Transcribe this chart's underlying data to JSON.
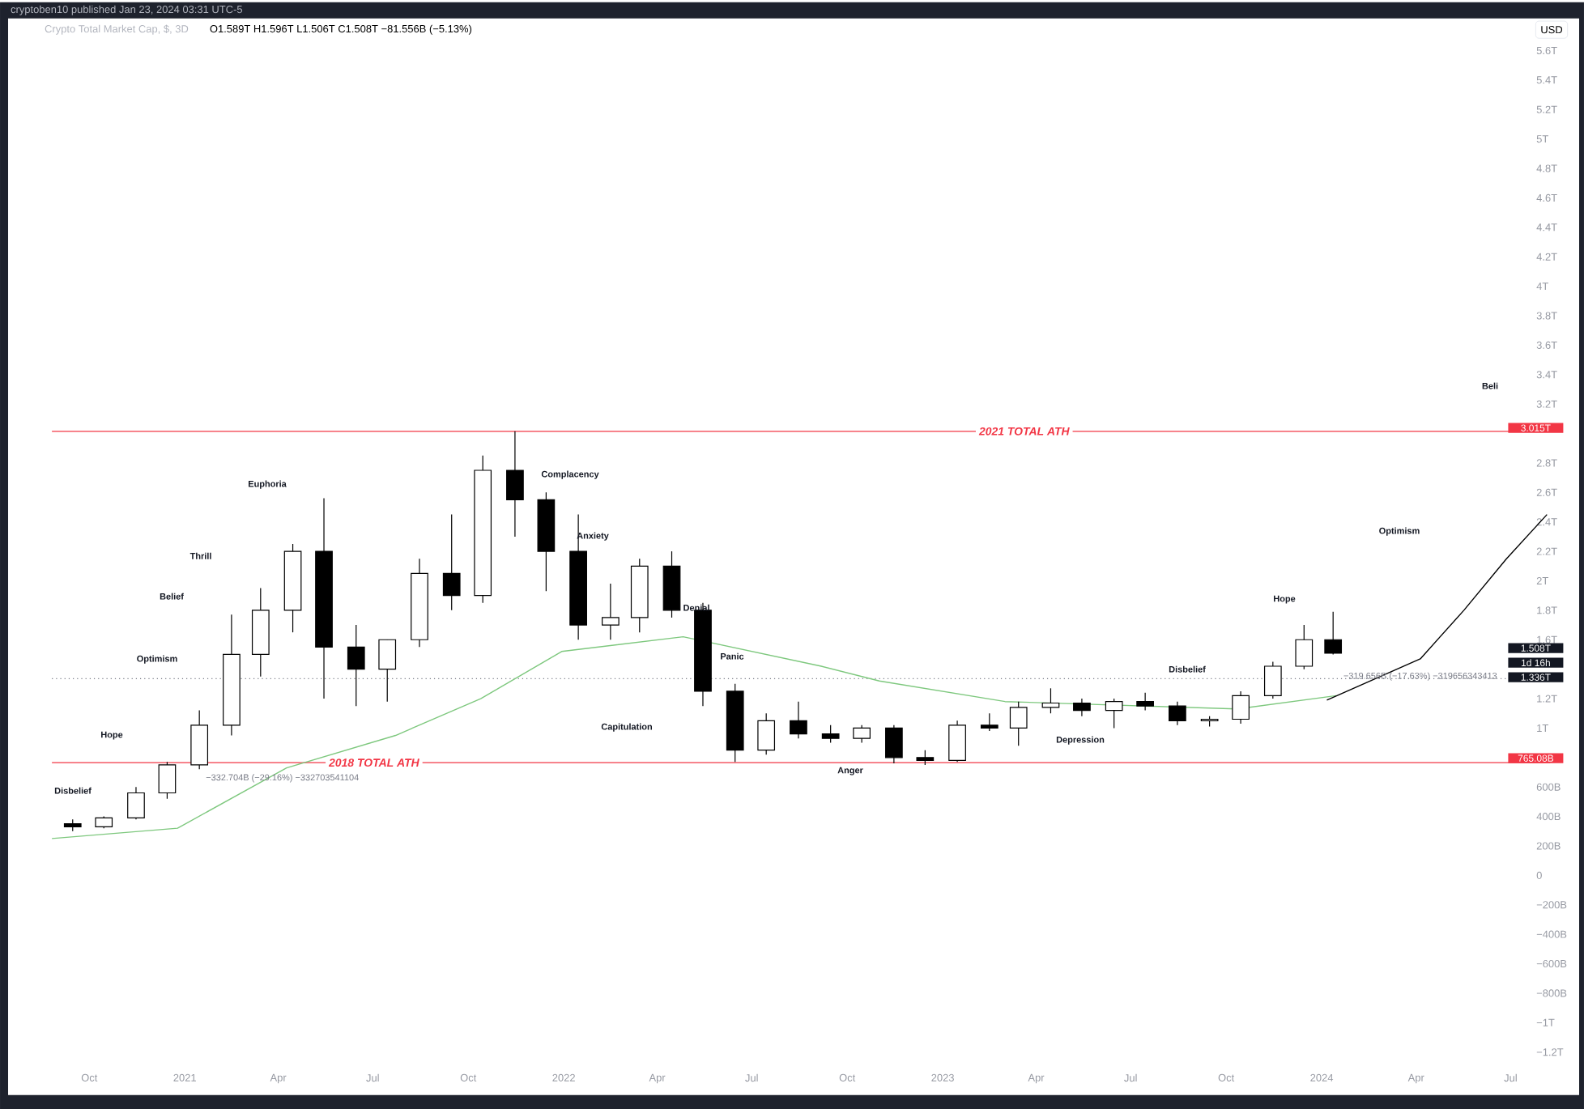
{
  "chart_data": {
    "type": "candlestick",
    "title": "Crypto Total Market Cap, $, 3D",
    "subtitle": "O1.589T H1.596T L1.506T C1.508T −81.556B (−5.13%)",
    "ylabel": "USD",
    "x": [
      "2020-09-15",
      "2020-10-15",
      "2020-11-15",
      "2020-12-15",
      "2021-01-15",
      "2021-02-15",
      "2021-03-15",
      "2021-04-15",
      "2021-05-15",
      "2021-06-15",
      "2021-07-15",
      "2021-08-15",
      "2021-09-15",
      "2021-10-15",
      "2021-11-15",
      "2021-12-15",
      "2022-01-15",
      "2022-02-15",
      "2022-03-15",
      "2022-04-15",
      "2022-05-15",
      "2022-06-15",
      "2022-07-15",
      "2022-08-15",
      "2022-09-15",
      "2022-10-15",
      "2022-11-15",
      "2022-12-15",
      "2023-01-15",
      "2023-02-15",
      "2023-03-15",
      "2023-04-15",
      "2023-05-15",
      "2023-06-15",
      "2023-07-15",
      "2023-08-15",
      "2023-09-15",
      "2023-10-15",
      "2023-11-15",
      "2023-12-15",
      "2024-01-12"
    ],
    "ohlc": [
      [
        350000000000.0,
        380000000000.0,
        300000000000.0,
        330000000000.0
      ],
      [
        330000000000.0,
        400000000000.0,
        320000000000.0,
        390000000000.0
      ],
      [
        390000000000.0,
        600000000000.0,
        380000000000.0,
        560000000000.0
      ],
      [
        560000000000.0,
        770000000000.0,
        520000000000.0,
        750000000000.0
      ],
      [
        750000000000.0,
        1120000000000.0,
        720000000000.0,
        1020000000000.0
      ],
      [
        1020000000000.0,
        1770000000000.0,
        950000000000.0,
        1500000000000.0
      ],
      [
        1500000000000.0,
        1950000000000.0,
        1350000000000.0,
        1800000000000.0
      ],
      [
        1800000000000.0,
        2250000000000.0,
        1650000000000.0,
        2200000000000.0
      ],
      [
        2200000000000.0,
        2560000000000.0,
        1200000000000.0,
        1550000000000.0
      ],
      [
        1550000000000.0,
        1700000000000.0,
        1150000000000.0,
        1400000000000.0
      ],
      [
        1400000000000.0,
        1600000000000.0,
        1180000000000.0,
        1600000000000.0
      ],
      [
        1600000000000.0,
        2150000000000.0,
        1550000000000.0,
        2050000000000.0
      ],
      [
        2050000000000.0,
        2450000000000.0,
        1800000000000.0,
        1900000000000.0
      ],
      [
        1900000000000.0,
        2850000000000.0,
        1850000000000.0,
        2750000000000.0
      ],
      [
        2750000000000.0,
        3015000000000.0,
        2300000000000.0,
        2550000000000.0
      ],
      [
        2550000000000.0,
        2600000000000.0,
        1930000000000.0,
        2200000000000.0
      ],
      [
        2200000000000.0,
        2450000000000.0,
        1600000000000.0,
        1700000000000.0
      ],
      [
        1700000000000.0,
        1980000000000.0,
        1600000000000.0,
        1750000000000.0
      ],
      [
        1750000000000.0,
        2150000000000.0,
        1650000000000.0,
        2100000000000.0
      ],
      [
        2100000000000.0,
        2200000000000.0,
        1750000000000.0,
        1800000000000.0
      ],
      [
        1800000000000.0,
        1850000000000.0,
        1150000000000.0,
        1250000000000.0
      ],
      [
        1250000000000.0,
        1300000000000.0,
        770000000000.0,
        850000000000.0
      ],
      [
        850000000000.0,
        1100000000000.0,
        820000000000.0,
        1050000000000.0
      ],
      [
        1050000000000.0,
        1180000000000.0,
        930000000000.0,
        960000000000.0
      ],
      [
        960000000000.0,
        1020000000000.0,
        900000000000.0,
        930000000000.0
      ],
      [
        930000000000.0,
        1020000000000.0,
        900000000000.0,
        1000000000000.0
      ],
      [
        1000000000000.0,
        1020000000000.0,
        760000000000.0,
        800000000000.0
      ],
      [
        800000000000.0,
        850000000000.0,
        750000000000.0,
        780000000000.0
      ],
      [
        780000000000.0,
        1050000000000.0,
        770000000000.0,
        1020000000000.0
      ],
      [
        1020000000000.0,
        1100000000000.0,
        980000000000.0,
        1000000000000.0
      ],
      [
        1000000000000.0,
        1180000000000.0,
        880000000000.0,
        1140000000000.0
      ],
      [
        1140000000000.0,
        1270000000000.0,
        1100000000000.0,
        1170000000000.0
      ],
      [
        1170000000000.0,
        1200000000000.0,
        1080000000000.0,
        1120000000000.0
      ],
      [
        1120000000000.0,
        1200000000000.0,
        1000000000000.0,
        1180000000000.0
      ],
      [
        1180000000000.0,
        1240000000000.0,
        1120000000000.0,
        1150000000000.0
      ],
      [
        1150000000000.0,
        1180000000000.0,
        1020000000000.0,
        1050000000000.0
      ],
      [
        1050000000000.0,
        1080000000000.0,
        1010000000000.0,
        1060000000000.0
      ],
      [
        1060000000000.0,
        1250000000000.0,
        1030000000000.0,
        1220000000000.0
      ],
      [
        1220000000000.0,
        1450000000000.0,
        1200000000000.0,
        1420000000000.0
      ],
      [
        1420000000000.0,
        1700000000000.0,
        1400000000000.0,
        1600000000000.0
      ],
      [
        1600000000000.0,
        1790000000000.0,
        1500000000000.0,
        1508000000000.0
      ]
    ],
    "series": [
      {
        "type": "line",
        "color": "#7ec87e",
        "x": [
          "2020-08-26",
          "2020-12-25",
          "2021-04-09",
          "2021-07-23",
          "2021-10-13",
          "2021-12-30",
          "2022-04-26",
          "2022-09-06",
          "2022-11-01",
          "2023-03-02",
          "2023-10-12",
          "2024-01-15"
        ],
        "values": [
          250000000000.0,
          320000000000.0,
          730000000000.0,
          950000000000.0,
          1200000000000.0,
          1520000000000.0,
          1620000000000.0,
          1420000000000.0,
          1320000000000.0,
          1180000000000.0,
          1130000000000.0,
          1220000000000.0
        ]
      },
      {
        "type": "line",
        "color": "#000000",
        "x": [
          "2024-01-06",
          "2024-04-05",
          "2024-05-17",
          "2024-06-27",
          "2024-08-05"
        ],
        "values": [
          1190000000000.0,
          1470000000000.0,
          1800000000000.0,
          2150000000000.0,
          2450000000000.0
        ]
      }
    ],
    "xlim": [
      "2020-08-26",
      "2024-08-08"
    ],
    "xticks": [
      {
        "value": "2020-10-01",
        "label": "Oct"
      },
      {
        "value": "2021-01-01",
        "label": "2021"
      },
      {
        "value": "2021-04-01",
        "label": "Apr"
      },
      {
        "value": "2021-07-01",
        "label": "Jul"
      },
      {
        "value": "2021-10-01",
        "label": "Oct"
      },
      {
        "value": "2022-01-01",
        "label": "2022"
      },
      {
        "value": "2022-04-01",
        "label": "Apr"
      },
      {
        "value": "2022-07-01",
        "label": "Jul"
      },
      {
        "value": "2022-10-01",
        "label": "Oct"
      },
      {
        "value": "2023-01-01",
        "label": "2023"
      },
      {
        "value": "2023-04-01",
        "label": "Apr"
      },
      {
        "value": "2023-07-01",
        "label": "Jul"
      },
      {
        "value": "2023-10-01",
        "label": "Oct"
      },
      {
        "value": "2024-01-01",
        "label": "2024"
      },
      {
        "value": "2024-04-01",
        "label": "Apr"
      },
      {
        "value": "2024-07-01",
        "label": "Jul"
      }
    ],
    "ylim": [
      -1200000000000.0,
      5600000000000.0
    ],
    "yticks": [
      {
        "value": -1200000000000.0,
        "label": "−1.2T"
      },
      {
        "value": -1000000000000.0,
        "label": "−1T"
      },
      {
        "value": -800000000000.0,
        "label": "−800B"
      },
      {
        "value": -600000000000.0,
        "label": "−600B"
      },
      {
        "value": -400000000000.0,
        "label": "−400B"
      },
      {
        "value": -200000000000.0,
        "label": "−200B"
      },
      0,
      {
        "value": 200000000000.0,
        "label": "200B"
      },
      {
        "value": 400000000000.0,
        "label": "400B"
      },
      {
        "value": 600000000000.0,
        "label": "600B"
      },
      {
        "value": 1000000000000.0,
        "label": "1T"
      },
      {
        "value": 1200000000000.0,
        "label": "1.2T"
      },
      {
        "value": 1600000000000.0,
        "label": "1.6T"
      },
      {
        "value": 1800000000000.0,
        "label": "1.8T"
      },
      {
        "value": 2000000000000.0,
        "label": "2T"
      },
      {
        "value": 2200000000000.0,
        "label": "2.2T"
      },
      {
        "value": 2400000000000.0,
        "label": "2.4T"
      },
      {
        "value": 2600000000000.0,
        "label": "2.6T"
      },
      {
        "value": 2800000000000.0,
        "label": "2.8T"
      },
      {
        "value": 3200000000000.0,
        "label": "3.2T"
      },
      {
        "value": 3400000000000.0,
        "label": "3.4T"
      },
      {
        "value": 3600000000000.0,
        "label": "3.6T"
      },
      {
        "value": 3800000000000.0,
        "label": "3.8T"
      },
      {
        "value": 4000000000000.0,
        "label": "4T"
      },
      {
        "value": 4200000000000.0,
        "label": "4.2T"
      },
      {
        "value": 4400000000000.0,
        "label": "4.4T"
      },
      {
        "value": 4600000000000.0,
        "label": "4.6T"
      },
      {
        "value": 4800000000000.0,
        "label": "4.8T"
      },
      {
        "value": 5000000000000.0,
        "label": "5T"
      },
      {
        "value": 5200000000000.0,
        "label": "5.2T"
      },
      {
        "value": 5400000000000.0,
        "label": "5.4T"
      },
      {
        "value": 5600000000000.0,
        "label": "5.6T"
      }
    ],
    "ref_lines": [
      {
        "axis": "y",
        "value": 3015000000000.0,
        "label": "2021 TOTAL ATH",
        "color": "#f23645"
      },
      {
        "axis": "y",
        "value": 765080000000.0,
        "label": "2018 TOTAL ATH",
        "color": "#f23645"
      },
      {
        "axis": "y",
        "value": 1336000000000.0,
        "color": "#787b86",
        "line_style": "dotted"
      }
    ],
    "annotations": [
      "cryptoben10 published Jan 23, 2024 03:31 UTC-5",
      "Disbelief",
      "Hope",
      "Optimism",
      "Belief",
      "Thrill",
      "Euphoria",
      "Complacency",
      "Anxiety",
      "Denial",
      "Panic",
      "Capitulation",
      "Anger",
      "Depression",
      "Disbelief",
      "Hope",
      "Optimism",
      "Beli",
      "3.015T",
      "765.08B",
      "1.508T",
      "1d 16h",
      "1.336T",
      {
        "text": "−332.704B (−29.16%) −332703541104",
        "x": "2021-04-05",
        "y": 660000000000.0
      },
      {
        "text": "−319.656B (−17.63%) −319656343413",
        "x": "2024-04-05",
        "y": 1350000000000.0
      }
    ]
  }
}
